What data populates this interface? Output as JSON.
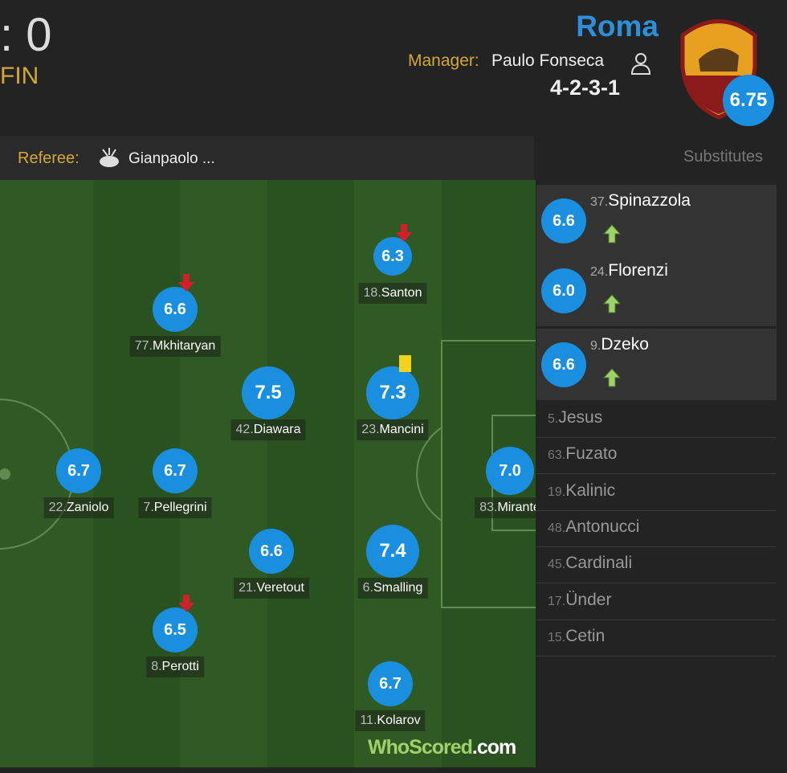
{
  "header": {
    "score": ": 0",
    "status": "FIN",
    "team": "Roma",
    "manager_label": "Manager:",
    "manager": "Paulo Fonseca",
    "formation": "4-2-3-1",
    "team_rating": "6.75"
  },
  "referee": {
    "label": "Referee:",
    "name": "Gianpaolo ..."
  },
  "substitutes_title": "Substitutes",
  "players": [
    {
      "number": "18.",
      "name": "Santon",
      "rating": "6.3"
    },
    {
      "number": "77.",
      "name": "Mkhitaryan",
      "rating": "6.6"
    },
    {
      "number": "42.",
      "name": "Diawara",
      "rating": "7.5"
    },
    {
      "number": "23.",
      "name": "Mancini",
      "rating": "7.3"
    },
    {
      "number": "22.",
      "name": "Zaniolo",
      "rating": "6.7"
    },
    {
      "number": "7.",
      "name": "Pellegrini",
      "rating": "6.7"
    },
    {
      "number": "83.",
      "name": "Mirante",
      "rating": "7.0"
    },
    {
      "number": "21.",
      "name": "Veretout",
      "rating": "6.6"
    },
    {
      "number": "6.",
      "name": "Smalling",
      "rating": "7.4"
    },
    {
      "number": "8.",
      "name": "Perotti",
      "rating": "6.5"
    },
    {
      "number": "11.",
      "name": "Kolarov",
      "rating": "6.7"
    }
  ],
  "substitutes_used": [
    {
      "number": "37.",
      "name": "Spinazzola",
      "rating": "6.6"
    },
    {
      "number": "24.",
      "name": "Florenzi",
      "rating": "6.0"
    },
    {
      "number": "9.",
      "name": "Dzeko",
      "rating": "6.6"
    }
  ],
  "bench": [
    {
      "number": "5.",
      "name": "Jesus"
    },
    {
      "number": "63.",
      "name": "Fuzato"
    },
    {
      "number": "19.",
      "name": "Kalinic"
    },
    {
      "number": "48.",
      "name": "Antonucci"
    },
    {
      "number": "45.",
      "name": "Cardinali"
    },
    {
      "number": "17.",
      "name": "Ünder"
    },
    {
      "number": "15.",
      "name": "Cetin"
    }
  ],
  "logo": {
    "brand": "WhoScored",
    "suffix": ".com"
  }
}
